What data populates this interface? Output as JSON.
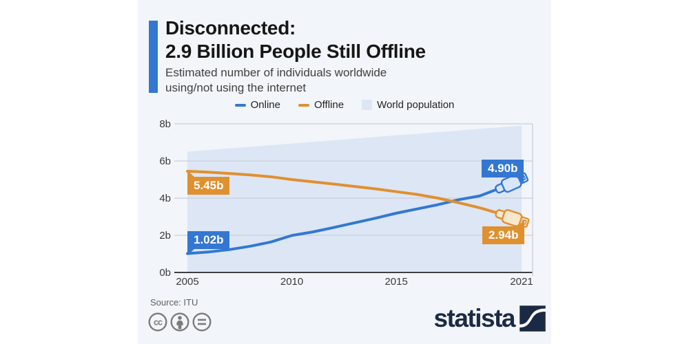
{
  "header": {
    "title_line1": "Disconnected:",
    "title_line2": "2.9 Billion People Still Offline",
    "subtitle_line1": "Estimated number of individuals worldwide",
    "subtitle_line2": "using/not using the internet",
    "accent_color": "#3377d2"
  },
  "legend": {
    "items": [
      {
        "label": "Online",
        "color": "#3377d2",
        "swatch": "line"
      },
      {
        "label": "Offline",
        "color": "#e0902f",
        "swatch": "line"
      },
      {
        "label": "World population",
        "color": "#dce6f5",
        "swatch": "area"
      }
    ]
  },
  "chart_data": {
    "type": "line",
    "title": "Estimated number of individuals worldwide using/not using the internet",
    "x": [
      2005,
      2006,
      2007,
      2008,
      2009,
      2010,
      2011,
      2012,
      2013,
      2014,
      2015,
      2016,
      2017,
      2018,
      2019,
      2020,
      2021
    ],
    "series": [
      {
        "name": "World population",
        "type": "area",
        "color": "#dce6f5",
        "values": [
          6.5,
          6.59,
          6.68,
          6.76,
          6.85,
          6.94,
          7.03,
          7.11,
          7.2,
          7.29,
          7.38,
          7.46,
          7.55,
          7.64,
          7.73,
          7.81,
          7.9
        ]
      },
      {
        "name": "Online",
        "type": "line",
        "color": "#3377d2",
        "values": [
          1.02,
          1.1,
          1.23,
          1.41,
          1.64,
          1.99,
          2.18,
          2.42,
          2.67,
          2.92,
          3.19,
          3.42,
          3.65,
          3.92,
          4.12,
          4.55,
          4.9
        ]
      },
      {
        "name": "Offline",
        "type": "line",
        "color": "#e0902f",
        "values": [
          5.45,
          5.4,
          5.33,
          5.25,
          5.15,
          5.0,
          4.88,
          4.76,
          4.63,
          4.5,
          4.35,
          4.2,
          4.0,
          3.75,
          3.48,
          3.15,
          2.94
        ]
      }
    ],
    "ylim": [
      0,
      8
    ],
    "yticks": [
      {
        "v": 0,
        "label": "0b"
      },
      {
        "v": 2,
        "label": "2b"
      },
      {
        "v": 4,
        "label": "4b"
      },
      {
        "v": 6,
        "label": "6b"
      },
      {
        "v": 8,
        "label": "8b"
      }
    ],
    "xticks": [
      {
        "v": 2005,
        "label": "2005"
      },
      {
        "v": 2010,
        "label": "2010"
      },
      {
        "v": 2015,
        "label": "2015"
      },
      {
        "v": 2021,
        "label": "2021"
      }
    ],
    "grid": true,
    "legend_position": "top",
    "annotations": [
      {
        "series": "Offline",
        "x": 2005,
        "value": 5.45,
        "label": "5.45b"
      },
      {
        "series": "Online",
        "x": 2005,
        "value": 1.02,
        "label": "1.02b"
      },
      {
        "series": "Online",
        "x": 2021,
        "value": 4.9,
        "label": "4.90b"
      },
      {
        "series": "Offline",
        "x": 2021,
        "value": 2.94,
        "label": "2.94b"
      }
    ]
  },
  "footer": {
    "source": "Source: ITU",
    "license_icons": [
      "cc-icon",
      "attribution-icon",
      "no-derivatives-icon"
    ],
    "brand": "statista"
  }
}
